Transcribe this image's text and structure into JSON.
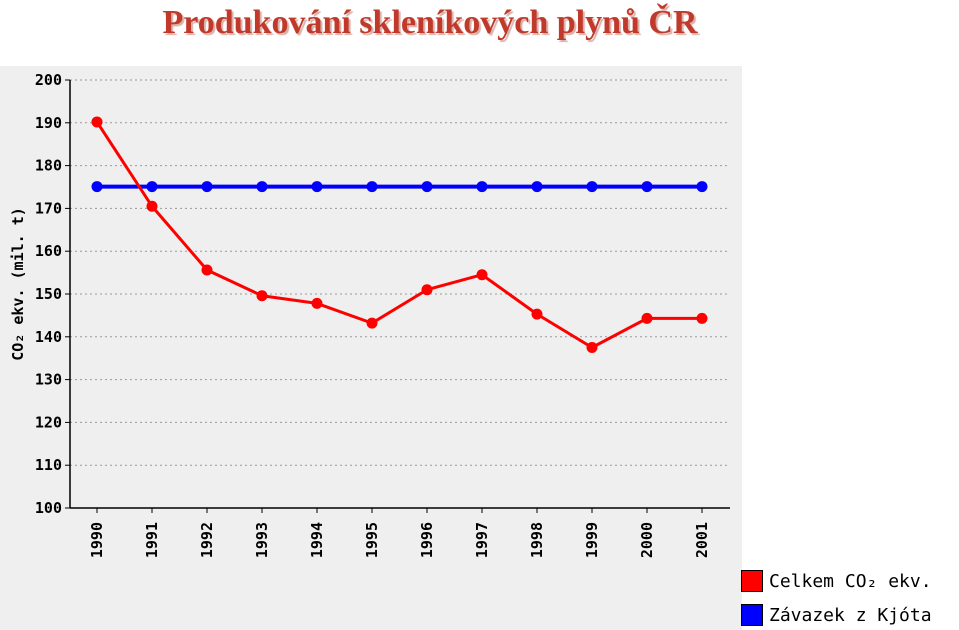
{
  "title": "Produkování skleníkových plynů ČR",
  "chart_data": {
    "type": "line",
    "title": "Produkování skleníkových plynů ČR",
    "ylabel": "CO₂ ekv. (mil. t)",
    "xlabel": "",
    "categories": [
      "1990",
      "1991",
      "1992",
      "1993",
      "1994",
      "1995",
      "1996",
      "1997",
      "1998",
      "1999",
      "2000",
      "2001"
    ],
    "ylim": [
      100,
      200
    ],
    "yticks": [
      100,
      110,
      120,
      130,
      140,
      150,
      160,
      170,
      180,
      190,
      200
    ],
    "grid": true,
    "legend_position": "bottom-right",
    "series": [
      {
        "name": "Celkem CO₂ ekv.",
        "color": "#ff0000",
        "values": [
          190.2,
          170.5,
          155.6,
          149.6,
          147.8,
          143.2,
          151.0,
          154.5,
          145.3,
          137.5,
          144.3,
          144.3
        ]
      },
      {
        "name": "Závazek z Kjóta",
        "color": "#0000ff",
        "values": [
          175.1,
          175.1,
          175.1,
          175.1,
          175.1,
          175.1,
          175.1,
          175.1,
          175.1,
          175.1,
          175.1,
          175.1
        ]
      }
    ]
  }
}
